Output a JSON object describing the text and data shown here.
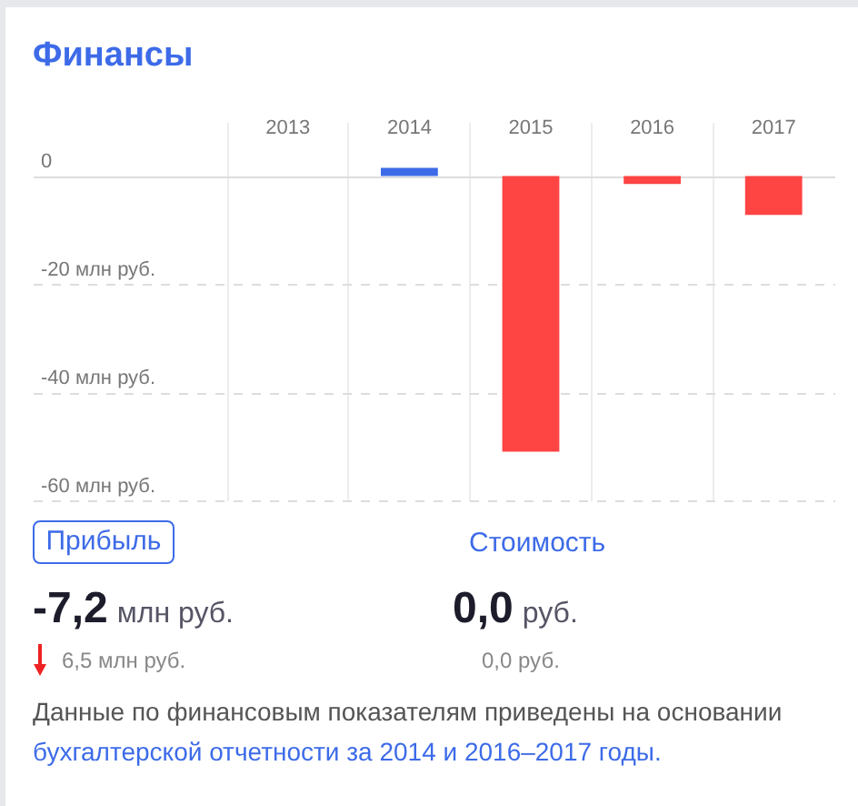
{
  "chart_data": {
    "type": "bar",
    "title": "Финансы",
    "categories": [
      "2013",
      "2014",
      "2015",
      "2016",
      "2017"
    ],
    "values": [
      null,
      1.5,
      -51,
      -1.5,
      -7.2
    ],
    "colors": [
      null,
      "#3d6be8",
      "#ff4444",
      "#ff4444",
      "#ff4444"
    ],
    "ylim": [
      -60,
      10
    ],
    "yticks": [
      0,
      {
        "value": -20,
        "label": "-20 млн руб."
      },
      {
        "value": -40,
        "label": "-40 млн руб."
      },
      {
        "value": -60,
        "label": "-60 млн руб."
      }
    ],
    "grid": true,
    "annotations": [
      "Прибыль",
      "Стоимость",
      "-7,2 млн руб.",
      "0,0 руб.",
      "6,5 млн руб.",
      "0,0 руб.",
      "Данные по финансовым показателям приведены на основании",
      "бухгалтерской отчетности за 2014 и 2016–2017 годы."
    ]
  }
}
